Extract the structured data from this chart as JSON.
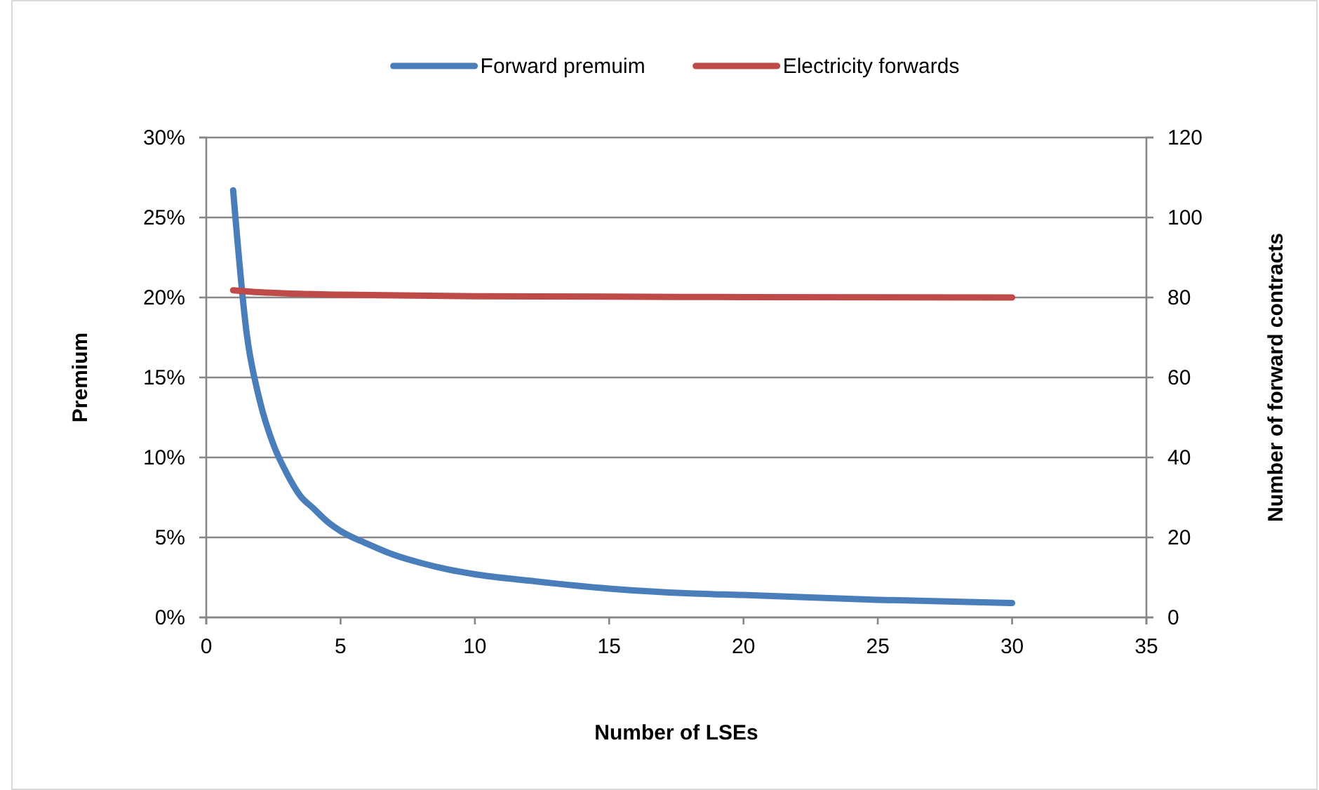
{
  "chart_data": {
    "type": "line",
    "xlabel": "Number of LSEs",
    "ylabel": "Premium",
    "y2label": "Number of forward contracts",
    "xlim": [
      0,
      35
    ],
    "xticks": [
      0,
      5,
      10,
      15,
      20,
      25,
      30,
      35
    ],
    "ylim": [
      0,
      30
    ],
    "yticks": [
      {
        "value": 0,
        "label": "0%"
      },
      {
        "value": 5,
        "label": "5%"
      },
      {
        "value": 10,
        "label": "10%"
      },
      {
        "value": 15,
        "label": "15%"
      },
      {
        "value": 20,
        "label": "20%"
      },
      {
        "value": 25,
        "label": "25%"
      },
      {
        "value": 30,
        "label": "30%"
      }
    ],
    "y2lim": [
      0,
      120
    ],
    "y2ticks": [
      0,
      20,
      40,
      60,
      80,
      100,
      120
    ],
    "grid": "y",
    "legend": "top",
    "marker": "none",
    "line_style": "solid",
    "series": [
      {
        "name": "Forward premuim",
        "color": "#4a7ebb",
        "x": [
          1,
          1.5,
          2,
          2.5,
          3,
          3.5,
          4,
          4.5,
          5,
          6,
          7,
          8,
          9,
          10,
          12,
          15,
          18,
          20,
          25,
          30
        ],
        "values": [
          26.7,
          17.8,
          13.5,
          10.8,
          9.0,
          7.6,
          6.8,
          6.0,
          5.4,
          4.6,
          3.9,
          3.4,
          3.0,
          2.7,
          2.3,
          1.8,
          1.5,
          1.4,
          1.1,
          0.9
        ]
      },
      {
        "name": "Electricity forwards",
        "color": "#be4b48",
        "axis": "y2",
        "x": [
          1,
          2,
          3,
          5,
          10,
          15,
          20,
          30
        ],
        "values": [
          81.8,
          81.3,
          81.0,
          80.7,
          80.3,
          80.2,
          80.1,
          80.0
        ]
      }
    ]
  }
}
